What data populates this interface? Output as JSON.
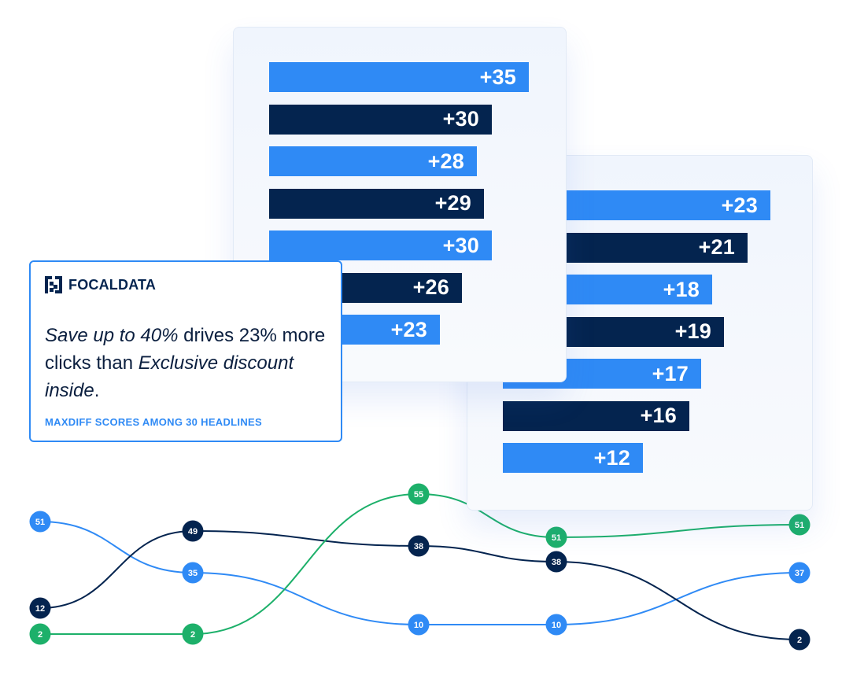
{
  "brand": {
    "name": "FOCALDATA",
    "logo_icon": "focaldata-logo-icon"
  },
  "callout": {
    "headline_parts": {
      "a": "Save up to 40%",
      "b": " drives 23% more clicks than ",
      "c": "Exclusive discount inside",
      "d": "."
    },
    "subtitle": "MAXDIFF SCORES AMONG 30 HEADLINES"
  },
  "colors": {
    "light_blue": "#2f8af5",
    "dark_navy": "#04244f",
    "green": "#1db06a"
  },
  "chart_data": [
    {
      "type": "bar",
      "orientation": "horizontal",
      "values": [
        35,
        30,
        28,
        29,
        30,
        26,
        23
      ],
      "labels": [
        "+35",
        "+30",
        "+28",
        "+29",
        "+30",
        "+26",
        "+23"
      ],
      "colors": [
        "light",
        "dark",
        "light",
        "dark",
        "light",
        "dark",
        "light"
      ]
    },
    {
      "type": "bar",
      "orientation": "horizontal",
      "values": [
        23,
        21,
        18,
        19,
        17,
        16,
        12
      ],
      "labels": [
        "+23",
        "+21",
        "+18",
        "+19",
        "+17",
        "+16",
        "+12"
      ],
      "colors": [
        "light",
        "dark",
        "light",
        "dark",
        "light",
        "dark",
        "light"
      ]
    },
    {
      "type": "line",
      "variant": "bump",
      "steps": 5,
      "series": [
        {
          "color": "light",
          "values": [
            51,
            35,
            10,
            10,
            37
          ]
        },
        {
          "color": "dark",
          "values": [
            12,
            49,
            38,
            38,
            2
          ]
        },
        {
          "color": "green",
          "values": [
            2,
            2,
            55,
            51,
            51
          ]
        }
      ]
    }
  ]
}
